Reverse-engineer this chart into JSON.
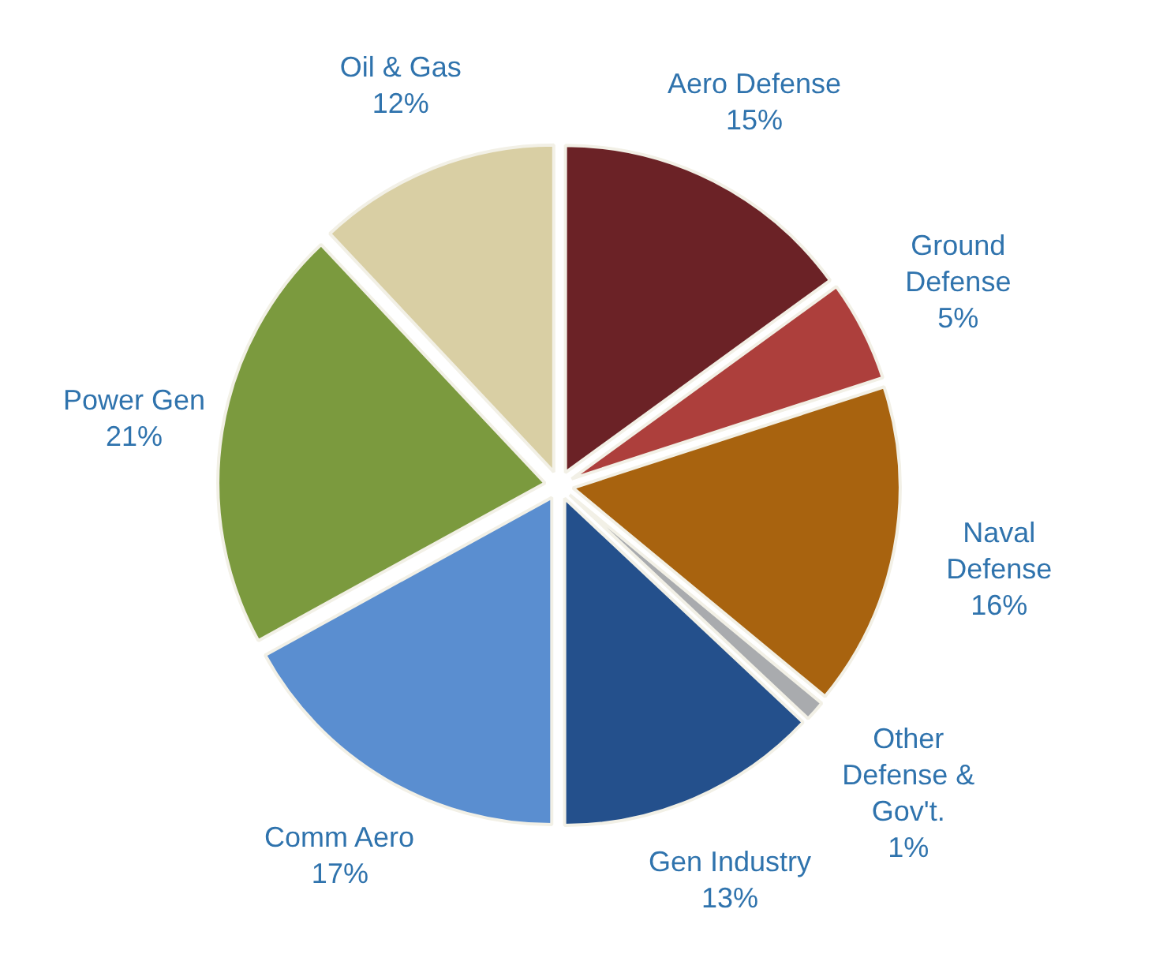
{
  "chart_data": {
    "type": "pie",
    "categories": [
      "Aero Defense",
      "Ground Defense",
      "Naval Defense",
      "Other Defense & Gov't.",
      "Gen Industry",
      "Comm Aero",
      "Power Gen",
      "Oil & Gas"
    ],
    "values": [
      15,
      5,
      16,
      1,
      13,
      17,
      21,
      12
    ],
    "colors": [
      "#6b2226",
      "#ad3f3c",
      "#a8630f",
      "#a9abae",
      "#24508c",
      "#5a8ed0",
      "#7b9a3e",
      "#d9cfa4"
    ],
    "value_labels": [
      "15%",
      "5%",
      "16%",
      "1%",
      "13%",
      "17%",
      "21%",
      "12%"
    ],
    "legend": false
  }
}
